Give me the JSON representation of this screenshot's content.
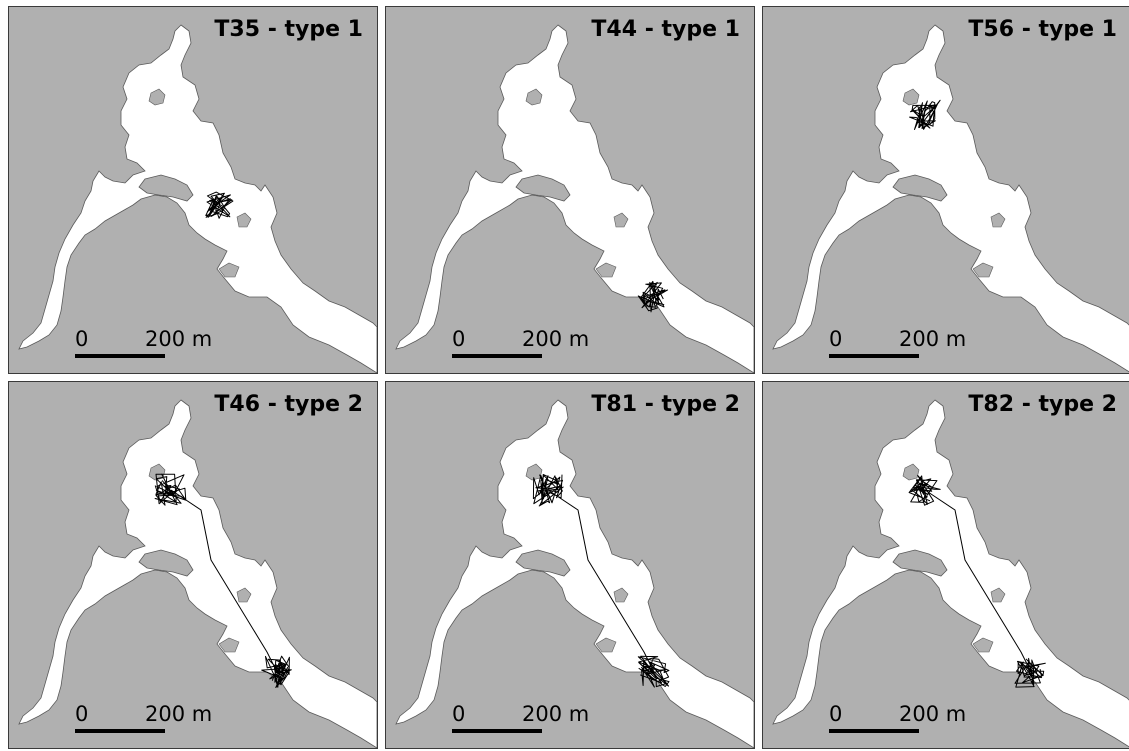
{
  "colors": {
    "land": "#b0b0b0",
    "water": "#ffffff",
    "track": "#000000",
    "border": "#3a3a3a"
  },
  "scale_bar": {
    "left_label": "0",
    "right_label": "200 m"
  },
  "panels": [
    {
      "title": "T35 - type 1",
      "track_kind": "cluster",
      "centers": [
        "upper-middle"
      ]
    },
    {
      "title": "T44 - type 1",
      "track_kind": "cluster",
      "centers": [
        "lower-channel"
      ]
    },
    {
      "title": "T56 - type 1",
      "track_kind": "cluster",
      "centers": [
        "upper-bay"
      ]
    },
    {
      "title": "T46 - type 2",
      "track_kind": "transit",
      "centers": [
        "upper-bay",
        "lower-channel"
      ]
    },
    {
      "title": "T81 - type 2",
      "track_kind": "transit",
      "centers": [
        "upper-bay",
        "lower-channel"
      ]
    },
    {
      "title": "T82 - type 2",
      "track_kind": "transit",
      "centers": [
        "upper-bay",
        "lower-channel"
      ]
    }
  ]
}
